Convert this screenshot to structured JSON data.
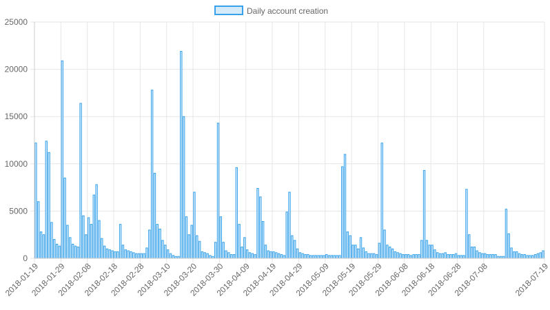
{
  "chart_data": {
    "type": "bar",
    "legend": {
      "label": "Daily account creation",
      "position": "top-center"
    },
    "colors": {
      "bar_fill": "#d6ebfa",
      "bar_stroke": "#36a2eb",
      "grid": "#e6e6e6",
      "text": "#666666"
    },
    "ylim": [
      0,
      25000
    ],
    "yticks": [
      "0",
      "5000",
      "10000",
      "15000",
      "20000",
      "25000"
    ],
    "ytick_values": [
      0,
      5000,
      10000,
      15000,
      20000,
      25000
    ],
    "x_start": "2018-01-19",
    "x_end": "2018-07-19",
    "grid": true,
    "xtick_labels": [
      "2018-01-19",
      "2018-01-29",
      "2018-02-08",
      "2018-02-18",
      "2018-02-28",
      "2018-03-10",
      "2018-03-20",
      "2018-03-30",
      "2018-04-09",
      "2018-04-19",
      "2018-04-29",
      "2018-05-09",
      "2018-05-19",
      "2018-05-29",
      "2018-06-08",
      "2018-06-18",
      "2018-06-28",
      "2018-07-08",
      "2018-07-19"
    ],
    "values": [
      12200,
      6000,
      2800,
      2500,
      12400,
      11200,
      3800,
      2000,
      1500,
      1300,
      20900,
      8500,
      3500,
      2200,
      1500,
      1300,
      1200,
      16400,
      4500,
      2500,
      4300,
      3600,
      6700,
      7800,
      4000,
      2100,
      1300,
      1000,
      900,
      800,
      700,
      700,
      3600,
      1400,
      900,
      800,
      700,
      600,
      500,
      500,
      500,
      500,
      1100,
      3000,
      17800,
      9000,
      3600,
      3100,
      1900,
      1400,
      900,
      500,
      300,
      200,
      200,
      21900,
      15000,
      4400,
      2500,
      3500,
      7000,
      2400,
      1800,
      700,
      600,
      500,
      300,
      200,
      1700,
      14300,
      4400,
      1700,
      800,
      600,
      400,
      400,
      9600,
      3600,
      1200,
      2200,
      900,
      600,
      500,
      400,
      7400,
      6500,
      3900,
      1400,
      800,
      700,
      700,
      600,
      500,
      400,
      300,
      4900,
      7000,
      2400,
      1900,
      1000,
      600,
      500,
      400,
      400,
      300,
      300,
      300,
      300,
      300,
      300,
      400,
      300,
      300,
      300,
      300,
      300,
      9700,
      11000,
      2800,
      2400,
      1400,
      1400,
      1000,
      2200,
      1100,
      700,
      500,
      500,
      500,
      400,
      1600,
      12200,
      3000,
      1400,
      1200,
      1000,
      700,
      600,
      500,
      400,
      400,
      400,
      300,
      400,
      400,
      400,
      1900,
      9300,
      1900,
      1400,
      1400,
      900,
      600,
      500,
      500,
      600,
      400,
      400,
      400,
      500,
      300,
      300,
      300,
      7300,
      2500,
      1200,
      1200,
      800,
      600,
      500,
      500,
      400,
      400,
      400,
      400,
      200,
      200,
      200,
      5200,
      2600,
      1100,
      700,
      700,
      500,
      400,
      400,
      300,
      300,
      300,
      400,
      500,
      600,
      800
    ]
  }
}
